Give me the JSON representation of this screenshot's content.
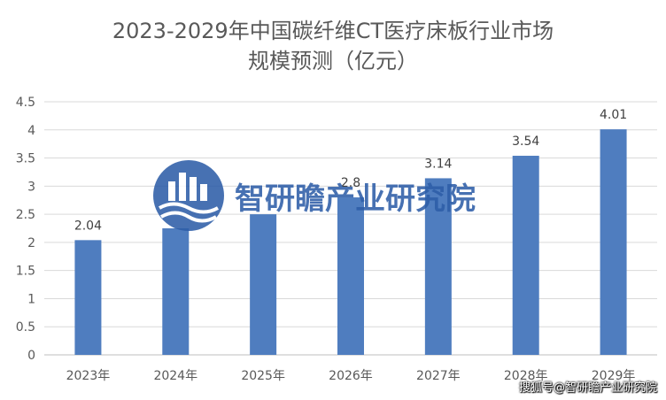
{
  "title_lines": [
    "2023-2029年中国碳纤维CT医疗床板行业市场",
    "规模预测（亿元）"
  ],
  "watermark": {
    "text": "智研瞻产业研究院"
  },
  "footer": {
    "credit": "搜狐号@智研瞻产业研究院"
  },
  "colors": {
    "bar": "#4f7dbf",
    "grid": "#d9d9d9",
    "axis_text": "#595959",
    "watermark": "#2e5ea8"
  },
  "chart_data": {
    "type": "bar",
    "title": "2023-2029年中国碳纤维CT医疗床板行业市场规模预测（亿元）",
    "categories": [
      "2023年",
      "2024年",
      "2025年",
      "2026年",
      "2027年",
      "2028年",
      "2029年"
    ],
    "values": [
      2.04,
      2.25,
      2.5,
      2.8,
      3.14,
      3.54,
      4.01
    ],
    "data_labels": [
      "2.04",
      "",
      "",
      "2.8",
      "3.14",
      "3.54",
      "4.01"
    ],
    "yticks": [
      "0",
      "0.5",
      "1",
      "1.5",
      "2",
      "2.5",
      "3",
      "3.5",
      "4",
      "4.5"
    ],
    "ylim": [
      0,
      4.5
    ],
    "xlabel": "",
    "ylabel": "",
    "grid": true,
    "legend": "none"
  }
}
